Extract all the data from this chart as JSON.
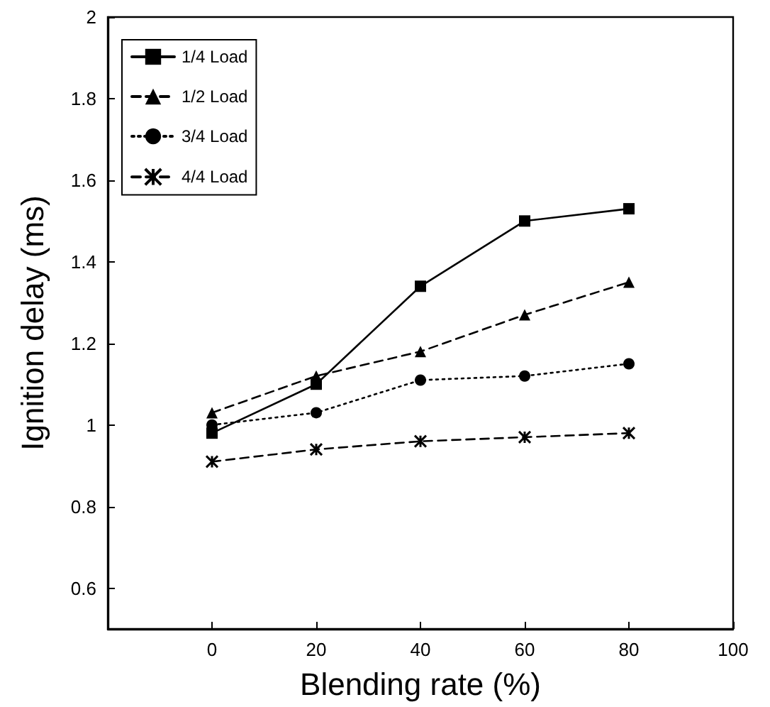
{
  "chart_data": {
    "type": "line",
    "xlabel": "Blending rate (%)",
    "ylabel": "Ignition delay (ms)",
    "x": [
      0,
      20,
      40,
      60,
      80
    ],
    "xlim": [
      -20,
      100
    ],
    "xticks": [
      0,
      20,
      40,
      60,
      80,
      100
    ],
    "ylim": [
      0.5,
      2
    ],
    "yticks": [
      0.6,
      0.8,
      1,
      1.2,
      1.4,
      1.6,
      1.8,
      2
    ],
    "grid": false,
    "legend": "top left",
    "series": [
      {
        "name": "1/4 Load",
        "color": "#000000",
        "marker": "square",
        "line_style": "solid",
        "values": [
          0.98,
          1.1,
          1.34,
          1.5,
          1.53
        ]
      },
      {
        "name": "1/2 Load",
        "color": "#000000",
        "marker": "triangle",
        "line_style": "dashed",
        "values": [
          1.03,
          1.12,
          1.18,
          1.27,
          1.35
        ]
      },
      {
        "name": "3/4 Load",
        "color": "#000000",
        "marker": "circle",
        "line_style": "dotted",
        "values": [
          1.0,
          1.03,
          1.11,
          1.12,
          1.15
        ]
      },
      {
        "name": "4/4 Load",
        "color": "#000000",
        "marker": "cross",
        "line_style": "dashed",
        "values": [
          0.91,
          0.94,
          0.96,
          0.97,
          0.98
        ]
      }
    ]
  }
}
